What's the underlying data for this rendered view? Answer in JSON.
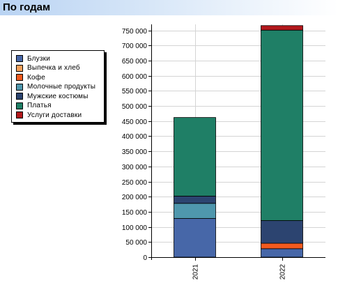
{
  "header": {
    "title": "По годам"
  },
  "chart_data": {
    "type": "bar",
    "stacked": true,
    "categories": [
      "2021",
      "2022"
    ],
    "series": [
      {
        "name": "Блузки",
        "color": "#4767a8",
        "values": [
          128000,
          28000
        ]
      },
      {
        "name": "Выпечка и хлеб",
        "color": "#f5a05a",
        "values": [
          0,
          0
        ]
      },
      {
        "name": "Кофе",
        "color": "#f25a1e",
        "values": [
          0,
          18000
        ]
      },
      {
        "name": "Молочные продукты",
        "color": "#4f97ad",
        "values": [
          50000,
          0
        ]
      },
      {
        "name": "Мужские костюмы",
        "color": "#2c4470",
        "values": [
          24000,
          75000
        ]
      },
      {
        "name": "Платья",
        "color": "#1f7f66",
        "values": [
          260000,
          630000
        ]
      },
      {
        "name": "Услуги доставки",
        "color": "#b3181c",
        "values": [
          0,
          15000
        ]
      }
    ],
    "yticks": [
      "0",
      "50 000",
      "100 000",
      "150 000",
      "200 000",
      "250 000",
      "300 000",
      "350 000",
      "400 000",
      "450 000",
      "500 000",
      "550 000",
      "600 000",
      "650 000",
      "700 000",
      "750 000"
    ],
    "ylim": [
      0,
      770000
    ],
    "grid": true,
    "legend_position": "left"
  }
}
